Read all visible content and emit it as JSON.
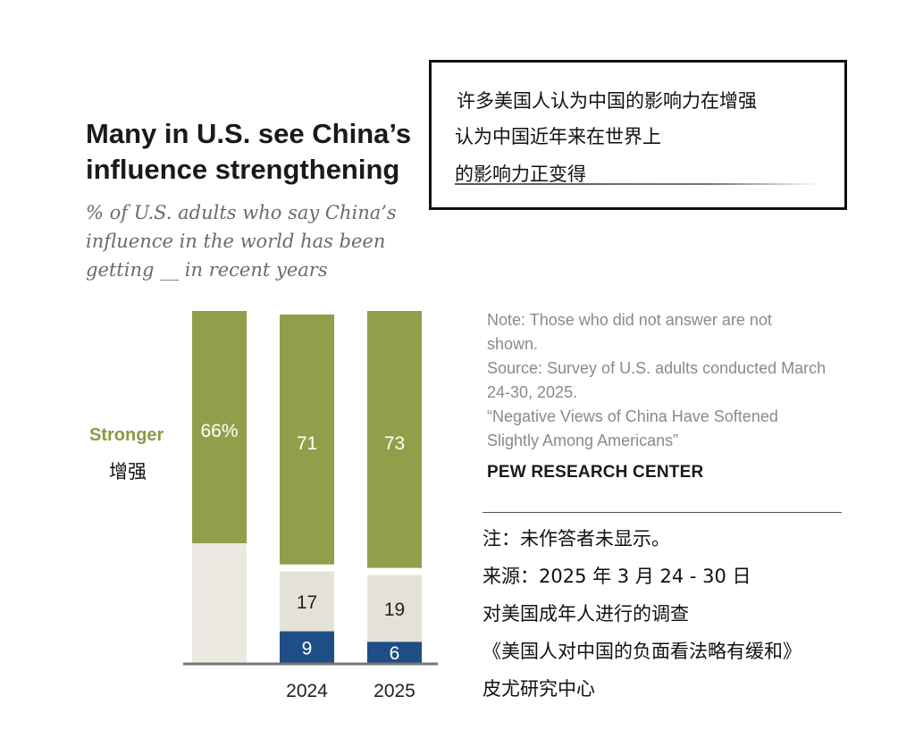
{
  "header": {
    "title": "Many in U.S. see China’s influence strengthening",
    "subtitle": "% of U.S. adults who say China’s influence in the world has been getting __ in recent years"
  },
  "translation_box": {
    "lines": [
      "许多美国人认为中国的影响力在增强",
      "认为中国近年来在世界上",
      "的影响力正变得___"
    ]
  },
  "legend": {
    "label_en": "Stronger",
    "label_cn": "增强"
  },
  "chart_data": {
    "type": "bar",
    "stacked": true,
    "categories": [
      "",
      "2024",
      "2025"
    ],
    "series": [
      {
        "name": "Stronger",
        "values": [
          66,
          71,
          73
        ],
        "labels": [
          "66%",
          "71",
          "73"
        ],
        "color": "#939e4b"
      },
      {
        "values": [
          null,
          17,
          19
        ],
        "labels": [
          "",
          "17",
          "19"
        ],
        "color": "#e4e2d7"
      },
      {
        "values": [
          null,
          9,
          6
        ],
        "labels": [
          "",
          "9",
          "6"
        ],
        "color": "#1f4e86"
      }
    ],
    "title": "Many in U.S. see China’s influence strengthening",
    "xlabel": "",
    "ylabel": "",
    "ylim": [
      0,
      100
    ],
    "grid": false
  },
  "notes": {
    "note": "Note: Those who did not answer are not shown.",
    "source": "Source: Survey of U.S. adults conducted March 24-30, 2025.",
    "report": "“Negative Views of China Have Softened Slightly Among Americans”",
    "org": "PEW RESEARCH CENTER"
  },
  "cn_notes": [
    "注：未作答者未显示。",
    "来源：2025 年 3 月 24 - 30 日",
    "对美国成年人进行的调查",
    "《美国人对中国的负面看法略有缓和》",
    "皮尤研究中心"
  ],
  "colors": {
    "stronger": "#939e4b",
    "middle": "#e4e2d7",
    "weaker": "#1f4e86",
    "axis": "#777777"
  }
}
